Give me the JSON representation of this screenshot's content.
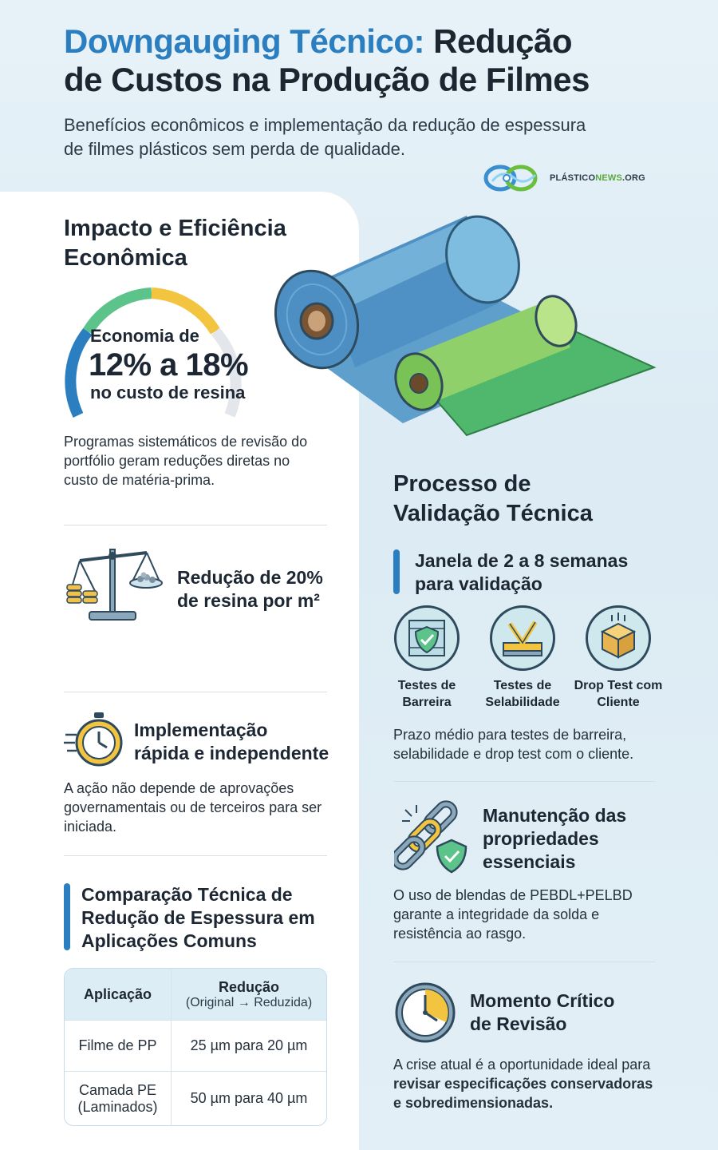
{
  "header": {
    "title_accent": "Downgauging Técnico:",
    "title_rest_1": "Redução",
    "title_line2": "de Custos na Produção de Filmes",
    "subtitle_line1": "Benefícios econômicos e implementação da redução de espessura",
    "subtitle_line2": "de filmes plásticos sem perda de qualidade."
  },
  "brand": {
    "name_part1": "PLÁSTICO",
    "name_part2": "NEWS",
    "name_part3": ".ORG"
  },
  "left": {
    "impact": {
      "heading_line1": "Impacto e Eficiência",
      "heading_line2": "Econômica",
      "gauge_top": "Economia de",
      "gauge_value": "12% a 18%",
      "gauge_bottom": "no custo de resina",
      "description": "Programas sistemáticos de revisão do portfólio geram reduções diretas no custo de matéria-prima."
    },
    "resin": {
      "line1": "Redução de 20%",
      "line2": "de resina por m²"
    },
    "implementation": {
      "heading_line1": "Implementação",
      "heading_line2": "rápida e independente",
      "description": "A ação não depende de aprovações governamentais ou de terceiros para ser iniciada."
    },
    "comparison": {
      "heading": "Comparação Técnica de Redução de Espessura em Aplicações Comuns",
      "col_application": "Aplicação",
      "col_reduction": "Redução",
      "col_reduction_sub": "(Original → Reduzida)",
      "rows": [
        {
          "application": "Filme de PP",
          "reduction": "25 µm para 20 µm"
        },
        {
          "application": "Camada PE (Laminados)",
          "reduction": "50 µm para 40 µm"
        }
      ]
    }
  },
  "right": {
    "validation": {
      "heading_line1": "Processo de",
      "heading_line2": "Validação Técnica",
      "window_line1": "Janela de 2 a 8 semanas",
      "window_line2": "para validação",
      "tests": [
        {
          "label": "Testes de Barreira",
          "icon": "barrier-shield-icon"
        },
        {
          "label": "Testes de Selabilidade",
          "icon": "seal-jaw-icon"
        },
        {
          "label": "Drop Test com Cliente",
          "icon": "drop-box-icon"
        }
      ],
      "description": "Prazo médio para testes de barreira, selabilidade e drop test com o cliente."
    },
    "properties": {
      "heading_line1": "Manutenção das",
      "heading_line2": "propriedades",
      "heading_line3": "essenciais",
      "description": "O uso de blendas de PEBDL+PELBD garante a integridade da solda e resistência ao rasgo."
    },
    "critical": {
      "heading_line1": "Momento Crítico",
      "heading_line2": "de Revisão",
      "desc_plain": "A crise atual é a oportunidade ideal para ",
      "desc_bold": "revisar especificações conservadoras e sobredimensionadas."
    }
  },
  "colors": {
    "accent_blue": "#2b7fc0",
    "brand_green": "#5aa83c",
    "gauge_green": "#5cc48b",
    "gauge_yellow": "#f3c43f",
    "gauge_grey": "#e3e6ea"
  }
}
